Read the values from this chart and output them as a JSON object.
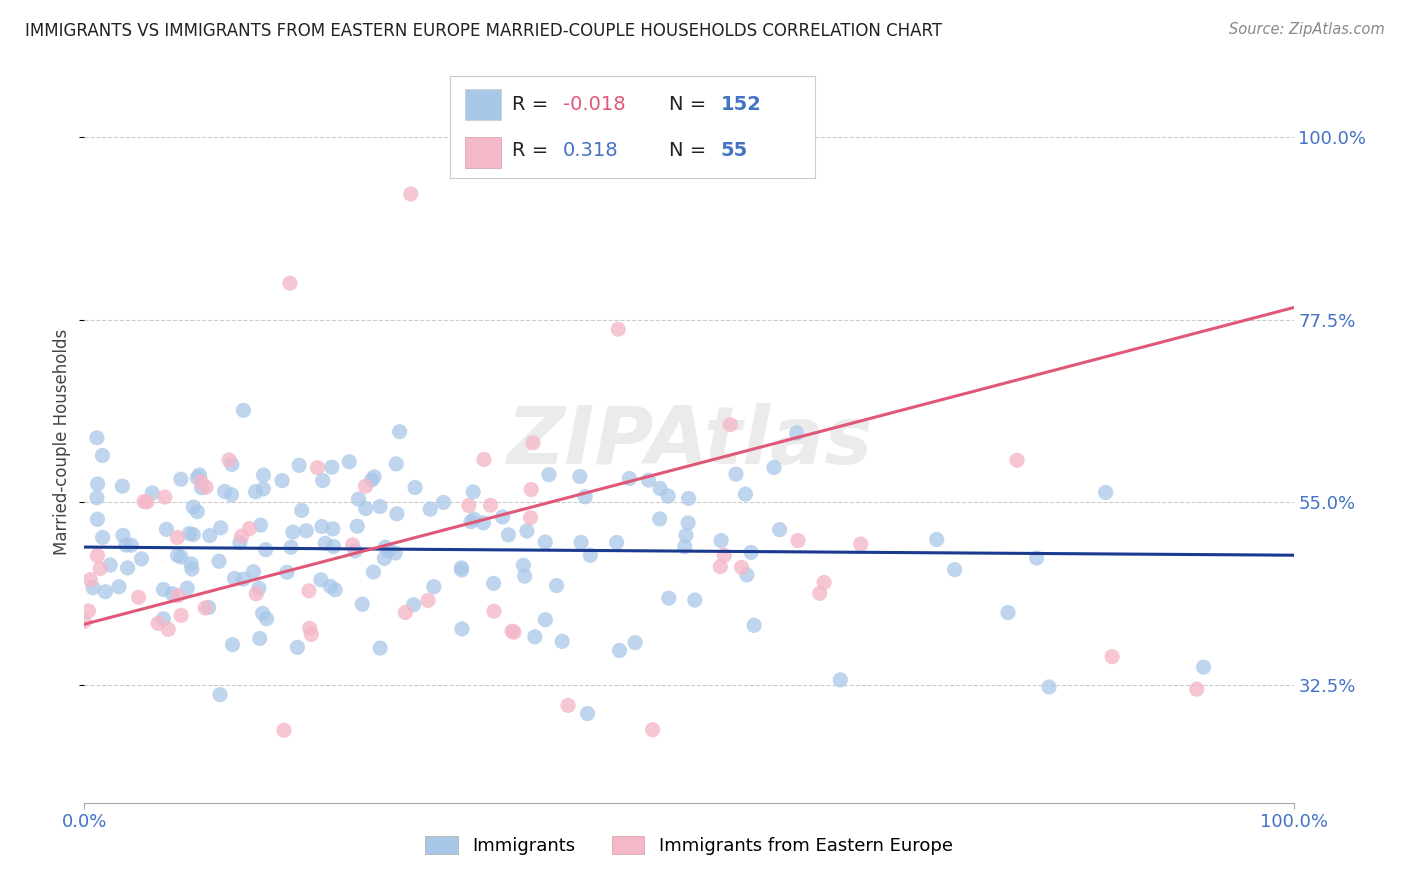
{
  "title": "IMMIGRANTS VS IMMIGRANTS FROM EASTERN EUROPE MARRIED-COUPLE HOUSEHOLDS CORRELATION CHART",
  "source": "Source: ZipAtlas.com",
  "ylabel_label": "Married-couple Households",
  "legend_labels": [
    "Immigrants",
    "Immigrants from Eastern Europe"
  ],
  "blue_color": "#a8c8e8",
  "pink_color": "#f4b8c8",
  "blue_line_color": "#1a3a8f",
  "pink_line_color": "#e05878",
  "R_blue": -0.018,
  "N_blue": 152,
  "R_pink": 0.318,
  "N_pink": 55,
  "watermark": "ZIPAtlas",
  "title_fontsize": 12,
  "axis_color": "#4472C4",
  "grid_color": "#cccccc",
  "yticks": [
    32.5,
    55.0,
    77.5,
    100.0
  ],
  "xmin": 0.0,
  "xmax": 100.0,
  "ymin": 18.0,
  "ymax": 107.0,
  "blue_trend_y0": 49.5,
  "blue_trend_y1": 48.5,
  "pink_trend_y0": 40.0,
  "pink_trend_y1": 79.0
}
